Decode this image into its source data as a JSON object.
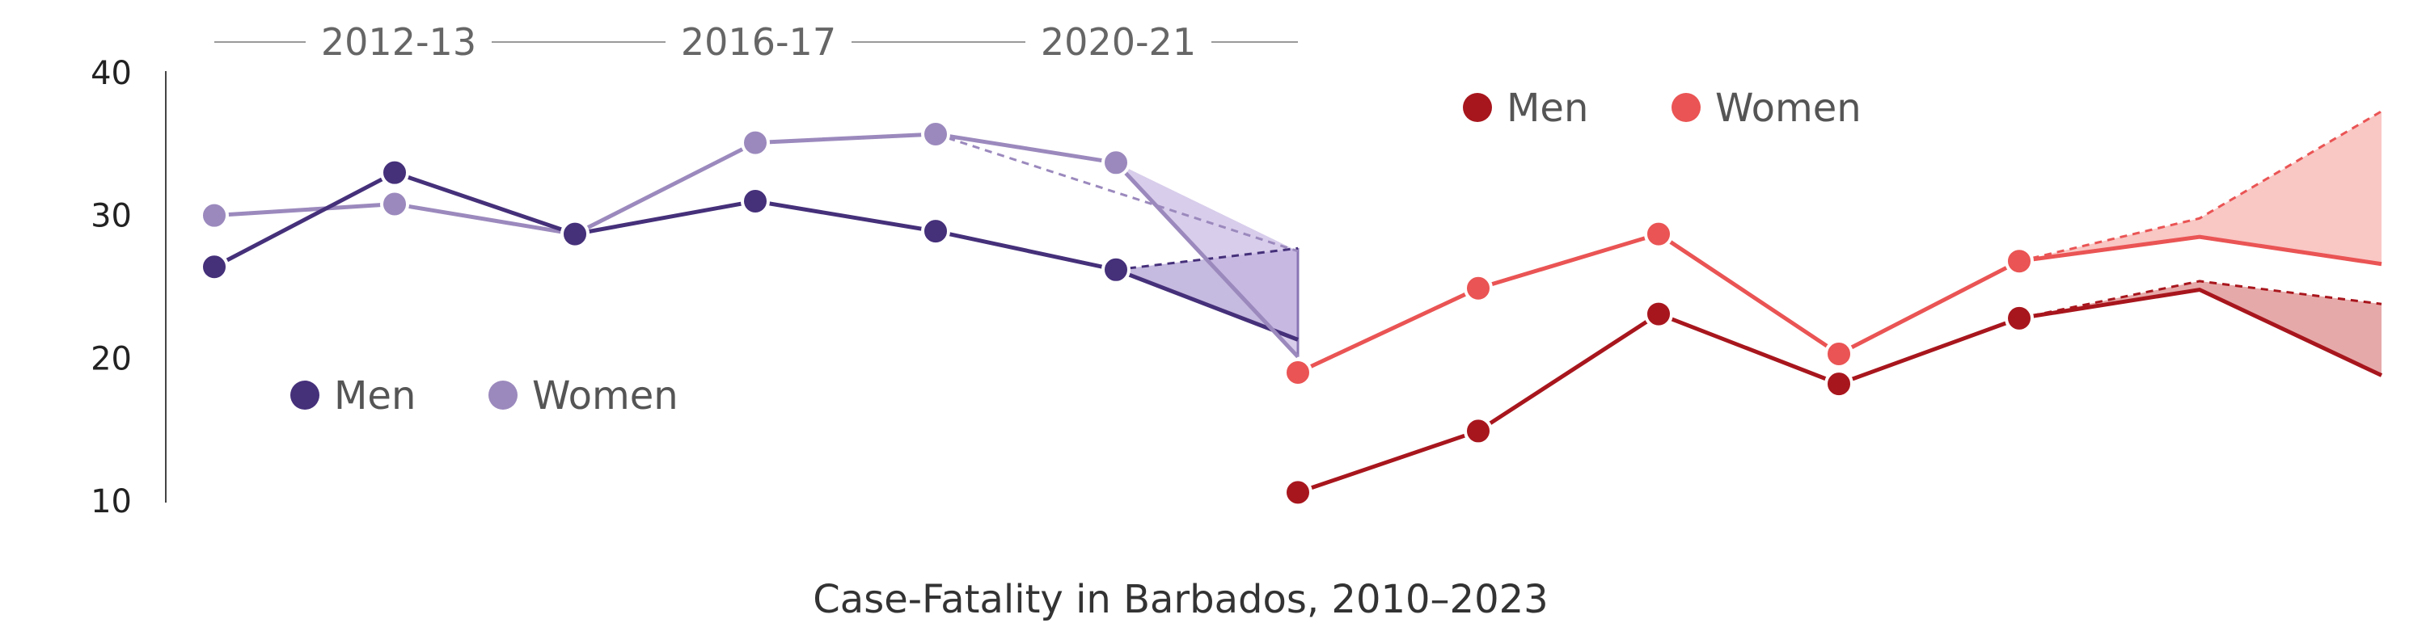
{
  "caption": "Case-Fatality in Barbados, 2010–2023",
  "chart_data": [
    {
      "type": "line",
      "panel": "left",
      "title": "",
      "xlabel": "",
      "ylabel": "",
      "ylim": [
        10,
        40
      ],
      "yticks": [
        10,
        20,
        30,
        40
      ],
      "periods": [
        "2012-13",
        "2016-17",
        "2020-21"
      ],
      "legend_placement": "lower-left",
      "series": [
        {
          "name": "Men",
          "color": "#45307a",
          "points": [
            26.4,
            33.0,
            28.7,
            31.0,
            28.9,
            26.2
          ],
          "projection": {
            "point": 26.2,
            "upper": 27.7,
            "lower": 21.3
          }
        },
        {
          "name": "Women",
          "color": "#9b89bd",
          "points": [
            30.0,
            30.8,
            28.7,
            35.1,
            35.7,
            33.7
          ],
          "projection": {
            "point": 33.7,
            "upper": 27.5,
            "lower": 20.1
          }
        }
      ]
    },
    {
      "type": "line",
      "panel": "right",
      "title": "",
      "xlabel": "",
      "ylabel": "",
      "ylim": [
        10,
        40
      ],
      "legend_placement": "top-left",
      "series": [
        {
          "name": "Men",
          "color": "#a8161d",
          "points": [
            10.6,
            14.9,
            23.1,
            18.2,
            22.8
          ],
          "projection": {
            "start": 22.8,
            "mid_upper": 25.4,
            "mid_lower": 24.8,
            "end_upper": 23.8,
            "end_lower": 18.8
          }
        },
        {
          "name": "Women",
          "color": "#ea5454",
          "points": [
            19.0,
            24.9,
            28.7,
            20.3,
            26.8
          ],
          "projection": {
            "start": 26.8,
            "mid_upper": 29.8,
            "mid_lower": 28.5,
            "end_upper": 37.3,
            "end_lower": 26.6
          }
        }
      ]
    }
  ]
}
